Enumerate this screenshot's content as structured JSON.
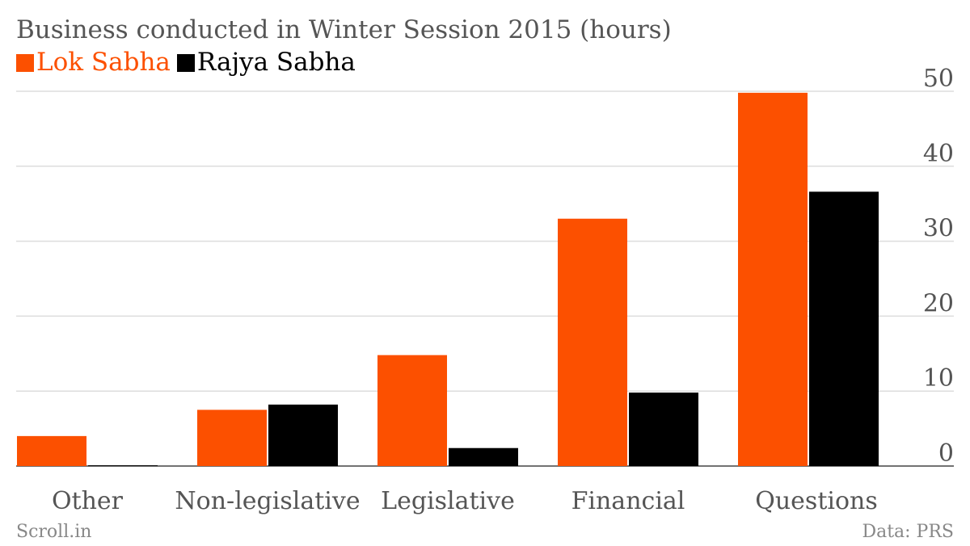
{
  "chart_data": {
    "type": "bar",
    "title": "Business conducted in Winter Session 2015 (hours)",
    "categories": [
      "Other",
      "Non-legislative",
      "Legislative",
      "Financial",
      "Questions"
    ],
    "series": [
      {
        "name": "Lok Sabha",
        "color": "#fc5000",
        "values": [
          4.0,
          7.5,
          14.8,
          33.0,
          49.8
        ]
      },
      {
        "name": "Rajya Sabha",
        "color": "#000000",
        "values": [
          0.1,
          8.2,
          2.4,
          9.8,
          36.6
        ]
      }
    ],
    "ylim": [
      0,
      50
    ],
    "yticks": [
      0,
      10,
      20,
      30,
      40,
      50
    ],
    "xlabel": "",
    "ylabel": "",
    "grid": true,
    "legend": "top-left"
  },
  "footer": {
    "source_left": "Scroll.in",
    "source_right": "Data: PRS"
  }
}
